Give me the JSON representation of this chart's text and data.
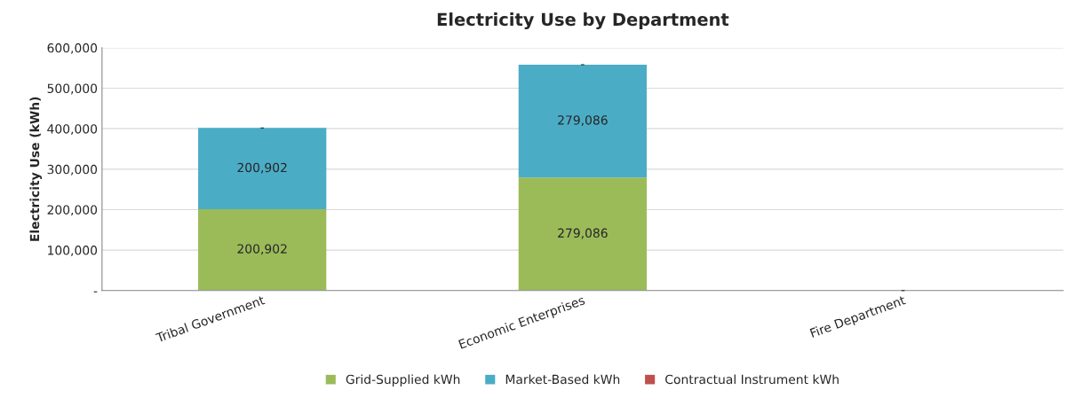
{
  "chart_data": {
    "type": "bar",
    "title": "Electricity Use by Department",
    "ylabel": "Electricity Use (kWh)",
    "categories": [
      "Tribal Government",
      "Economic Enterprises",
      "Fire Department"
    ],
    "stacked": true,
    "series": [
      {
        "name": "Grid-Supplied kWh",
        "color": "#9bbb59",
        "values": [
          200902,
          279086,
          0
        ],
        "value_labels": [
          "200,902",
          "279,086",
          null
        ]
      },
      {
        "name": "Market-Based kWh",
        "color": "#4bacc6",
        "values": [
          200902,
          279086,
          0
        ],
        "value_labels": [
          "200,902",
          "279,086",
          null
        ]
      },
      {
        "name": "Contractual Instrument kWh",
        "color": "#c0504d",
        "values": [
          0,
          0,
          0
        ],
        "value_labels": [
          "-",
          "-",
          "-"
        ]
      }
    ],
    "ylim": [
      0,
      600000
    ],
    "yticks": [
      {
        "value": 0,
        "label": "-"
      },
      {
        "value": 100000,
        "label": "100,000"
      },
      {
        "value": 200000,
        "label": "200,000"
      },
      {
        "value": 300000,
        "label": "300,000"
      },
      {
        "value": 400000,
        "label": "400,000"
      },
      {
        "value": 500000,
        "label": "500,000"
      },
      {
        "value": 600000,
        "label": "600,000"
      }
    ],
    "grid": "y",
    "legend": "bottom"
  }
}
